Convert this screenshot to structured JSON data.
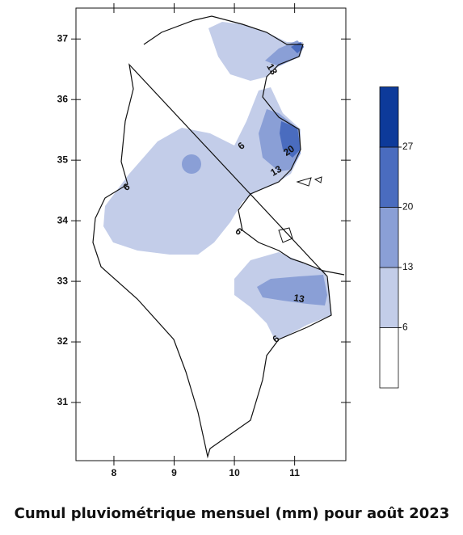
{
  "title": "Cumul pluviométrique mensuel (mm) pour août 2023",
  "x_axis": {
    "lim": [
      7.37,
      11.85
    ],
    "ticks": [
      8,
      9,
      10,
      11
    ]
  },
  "y_axis": {
    "lim": [
      30.04,
      37.51
    ],
    "ticks": [
      31,
      32,
      33,
      34,
      35,
      36,
      37
    ]
  },
  "contour_labels": [
    13,
    20,
    13,
    6,
    6,
    6,
    13,
    6
  ],
  "legend": {
    "levels": [
      6,
      13,
      20,
      27
    ],
    "colors": [
      "#ffffff",
      "#c3cde9",
      "#8a9fd6",
      "#4a6cbf",
      "#0d3a9a"
    ]
  }
}
